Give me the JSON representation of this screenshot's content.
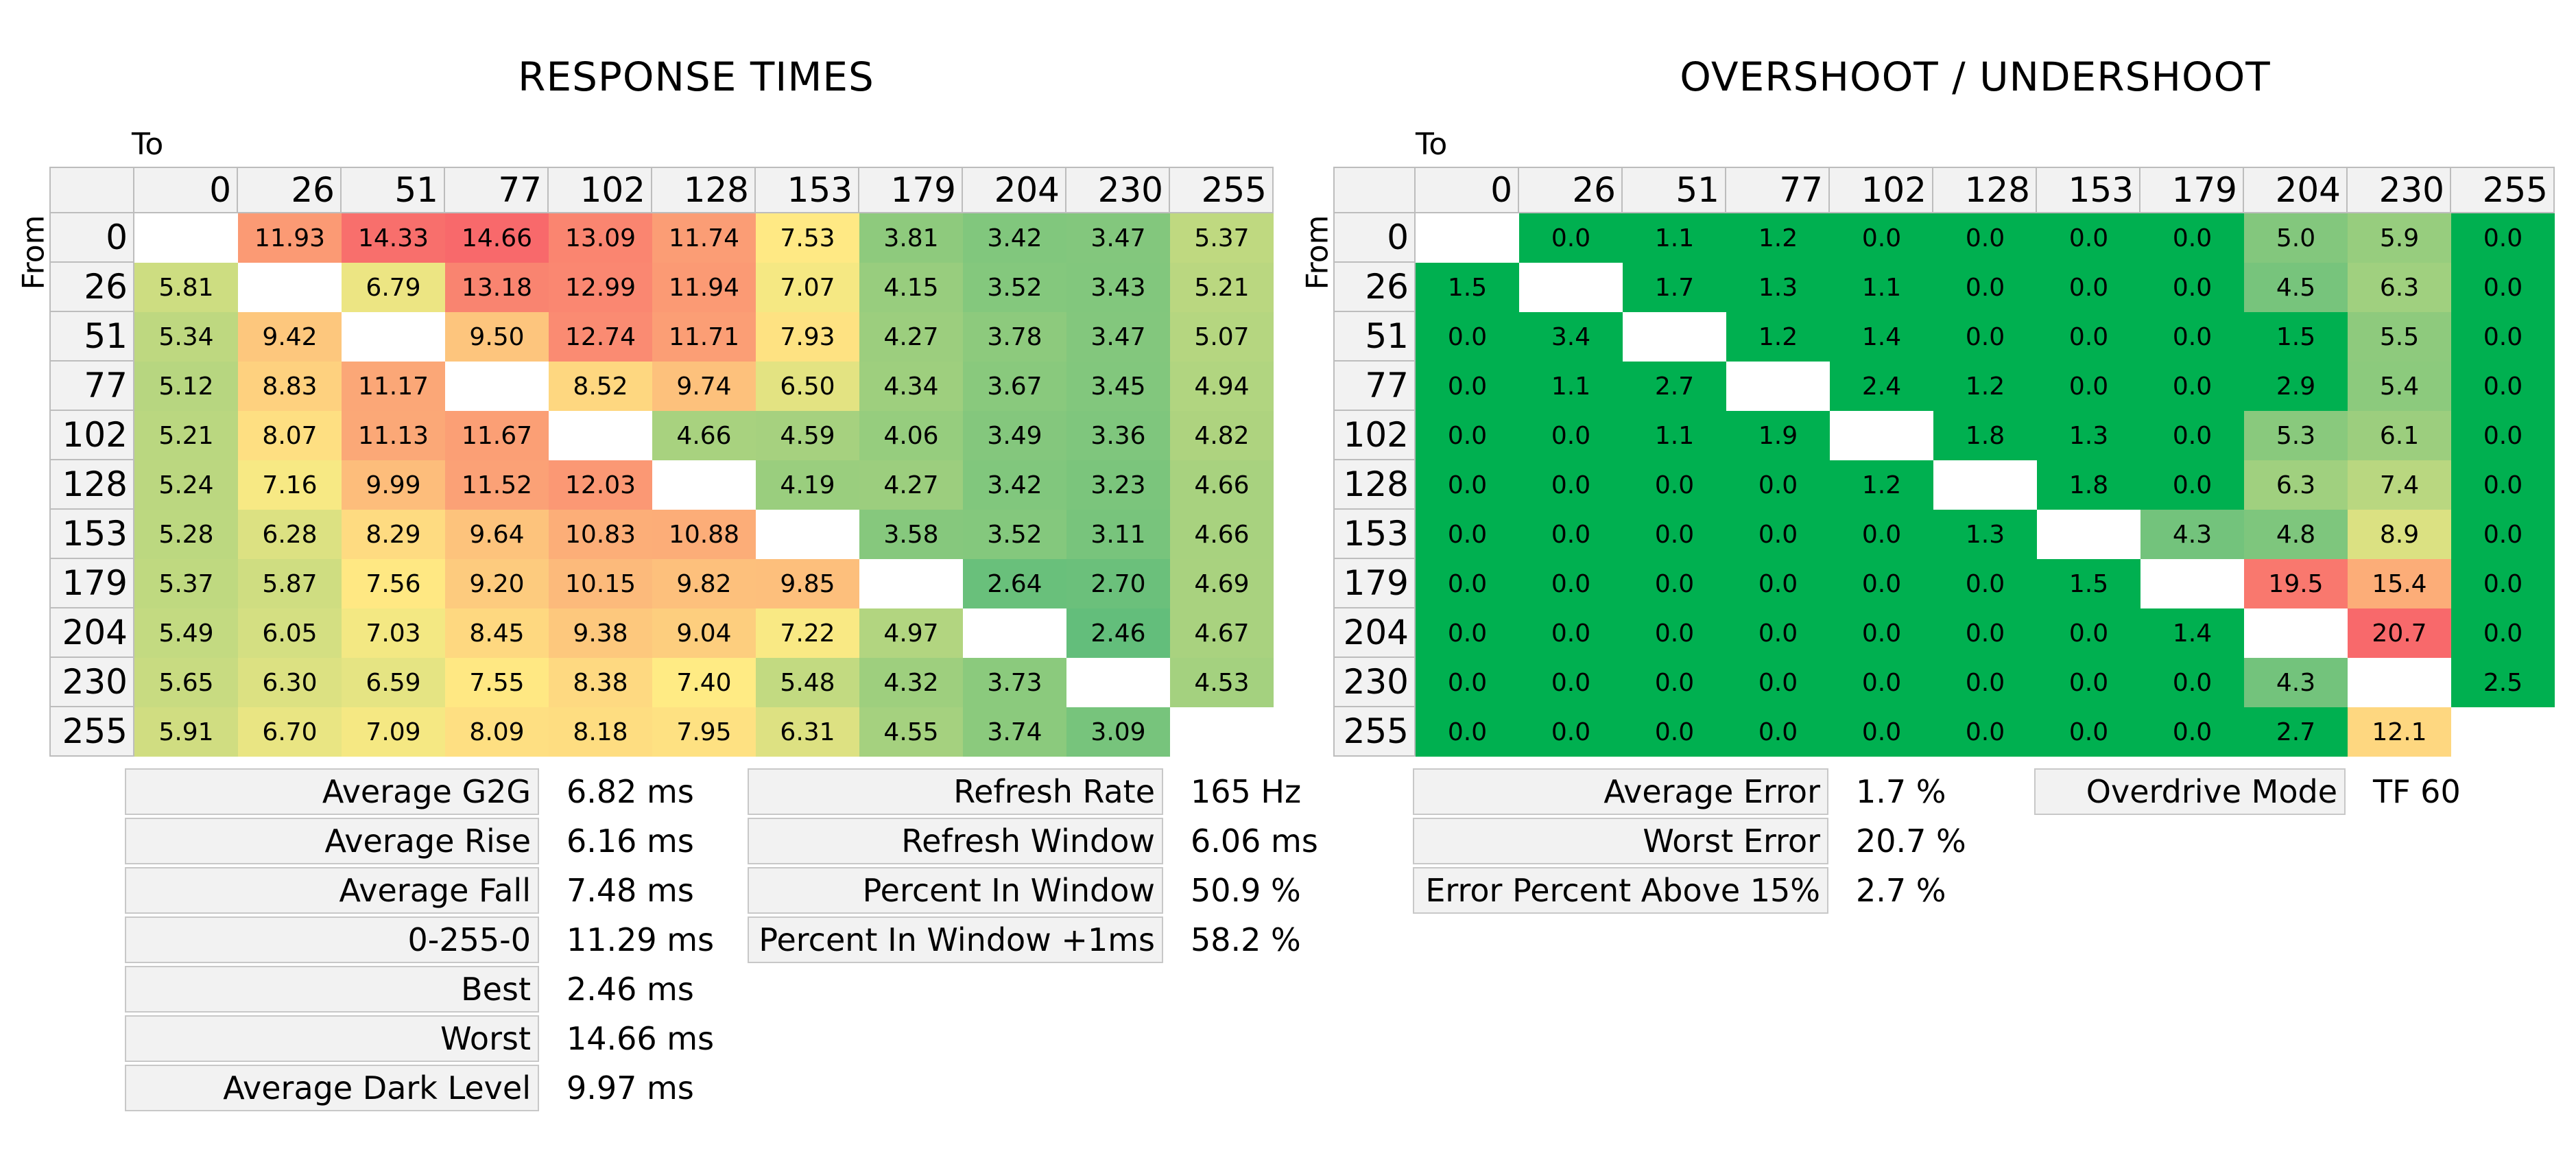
{
  "colors": {
    "red": "#f8696b",
    "yellow": "#ffeb84",
    "green": "#63be7b",
    "full_green": "#00b050"
  },
  "response": {
    "title": "RESPONSE TIMES",
    "to_label": "To",
    "from_label": "From",
    "stats": [
      {
        "label": "Average G2G",
        "value": "6.82 ms"
      },
      {
        "label": "Average Rise",
        "value": "6.16 ms"
      },
      {
        "label": "Average Fall",
        "value": "7.48 ms"
      },
      {
        "label": "0-255-0",
        "value": "11.29 ms"
      },
      {
        "label": "Best",
        "value": "2.46 ms"
      },
      {
        "label": "Worst",
        "value": "14.66 ms"
      },
      {
        "label": "Average Dark Level",
        "value": "9.97 ms"
      }
    ],
    "stats2": [
      {
        "label": "Refresh Rate",
        "value": "165 Hz"
      },
      {
        "label": "Refresh Window",
        "value": "6.06 ms"
      },
      {
        "label": "Percent In Window",
        "value": "50.9 %"
      },
      {
        "label": "Percent In Window +1ms",
        "value": "58.2 %"
      }
    ]
  },
  "overshoot": {
    "title": "OVERSHOOT / UNDERSHOOT",
    "to_label": "To",
    "from_label": "From",
    "stats": [
      {
        "label": "Average Error",
        "value": "1.7 %"
      },
      {
        "label": "Worst Error",
        "value": "20.7 %"
      },
      {
        "label": "Error Percent Above 15%",
        "value": "2.7 %"
      }
    ],
    "stats2": [
      {
        "label": "Overdrive Mode",
        "value": "TF 60"
      }
    ]
  },
  "chart_data": [
    {
      "type": "heatmap",
      "title": "RESPONSE TIMES",
      "xlabel": "To",
      "ylabel": "From",
      "x": [
        "0",
        "26",
        "51",
        "77",
        "102",
        "128",
        "153",
        "179",
        "204",
        "230",
        "255"
      ],
      "y": [
        "0",
        "26",
        "51",
        "77",
        "102",
        "128",
        "153",
        "179",
        "204",
        "230",
        "255"
      ],
      "values": [
        [
          null,
          "11.93",
          "14.33",
          "14.66",
          "13.09",
          "11.74",
          "7.53",
          "3.81",
          "3.42",
          "3.47",
          "5.37"
        ],
        [
          "5.81",
          null,
          "6.79",
          "13.18",
          "12.99",
          "11.94",
          "7.07",
          "4.15",
          "3.52",
          "3.43",
          "5.21"
        ],
        [
          "5.34",
          "9.42",
          null,
          "9.50",
          "12.74",
          "11.71",
          "7.93",
          "4.27",
          "3.78",
          "3.47",
          "5.07"
        ],
        [
          "5.12",
          "8.83",
          "11.17",
          null,
          "8.52",
          "9.74",
          "6.50",
          "4.34",
          "3.67",
          "3.45",
          "4.94"
        ],
        [
          "5.21",
          "8.07",
          "11.13",
          "11.67",
          null,
          "4.66",
          "4.59",
          "4.06",
          "3.49",
          "3.36",
          "4.82"
        ],
        [
          "5.24",
          "7.16",
          "9.99",
          "11.52",
          "12.03",
          null,
          "4.19",
          "4.27",
          "3.42",
          "3.23",
          "4.66"
        ],
        [
          "5.28",
          "6.28",
          "8.29",
          "9.64",
          "10.83",
          "10.88",
          null,
          "3.58",
          "3.52",
          "3.11",
          "4.66"
        ],
        [
          "5.37",
          "5.87",
          "7.56",
          "9.20",
          "10.15",
          "9.82",
          "9.85",
          null,
          "2.64",
          "2.70",
          "4.69"
        ],
        [
          "5.49",
          "6.05",
          "7.03",
          "8.45",
          "9.38",
          "9.04",
          "7.22",
          "4.97",
          null,
          "2.46",
          "4.67"
        ],
        [
          "5.65",
          "6.30",
          "6.59",
          "7.55",
          "8.38",
          "7.40",
          "5.48",
          "4.32",
          "3.73",
          null,
          "4.53"
        ],
        [
          "5.91",
          "6.70",
          "7.09",
          "8.09",
          "8.18",
          "7.95",
          "6.31",
          "4.55",
          "3.74",
          "3.09",
          null
        ]
      ]
    },
    {
      "type": "heatmap",
      "title": "OVERSHOOT / UNDERSHOOT",
      "xlabel": "To",
      "ylabel": "From",
      "x": [
        "0",
        "26",
        "51",
        "77",
        "102",
        "128",
        "153",
        "179",
        "204",
        "230",
        "255"
      ],
      "y": [
        "0",
        "26",
        "51",
        "77",
        "102",
        "128",
        "153",
        "179",
        "204",
        "230",
        "255"
      ],
      "values": [
        [
          null,
          "0.0",
          "1.1",
          "1.2",
          "0.0",
          "0.0",
          "0.0",
          "0.0",
          "5.0",
          "5.9",
          "0.0"
        ],
        [
          "1.5",
          null,
          "1.7",
          "1.3",
          "1.1",
          "0.0",
          "0.0",
          "0.0",
          "4.5",
          "6.3",
          "0.0"
        ],
        [
          "0.0",
          "3.4",
          null,
          "1.2",
          "1.4",
          "0.0",
          "0.0",
          "0.0",
          "1.5",
          "5.5",
          "0.0"
        ],
        [
          "0.0",
          "1.1",
          "2.7",
          null,
          "2.4",
          "1.2",
          "0.0",
          "0.0",
          "2.9",
          "5.4",
          "0.0"
        ],
        [
          "0.0",
          "0.0",
          "1.1",
          "1.9",
          null,
          "1.8",
          "1.3",
          "0.0",
          "5.3",
          "6.1",
          "0.0"
        ],
        [
          "0.0",
          "0.0",
          "0.0",
          "0.0",
          "1.2",
          null,
          "1.8",
          "0.0",
          "6.3",
          "7.4",
          "0.0"
        ],
        [
          "0.0",
          "0.0",
          "0.0",
          "0.0",
          "0.0",
          "1.3",
          null,
          "4.3",
          "4.8",
          "8.9",
          "0.0"
        ],
        [
          "0.0",
          "0.0",
          "0.0",
          "0.0",
          "0.0",
          "0.0",
          "1.5",
          null,
          "19.5",
          "15.4",
          "0.0"
        ],
        [
          "0.0",
          "0.0",
          "0.0",
          "0.0",
          "0.0",
          "0.0",
          "0.0",
          "1.4",
          null,
          "20.7",
          "0.0"
        ],
        [
          "0.0",
          "0.0",
          "0.0",
          "0.0",
          "0.0",
          "0.0",
          "0.0",
          "0.0",
          "4.3",
          null,
          "2.5"
        ],
        [
          "0.0",
          "0.0",
          "0.0",
          "0.0",
          "0.0",
          "0.0",
          "0.0",
          "0.0",
          "2.7",
          "12.1",
          null
        ]
      ]
    }
  ]
}
